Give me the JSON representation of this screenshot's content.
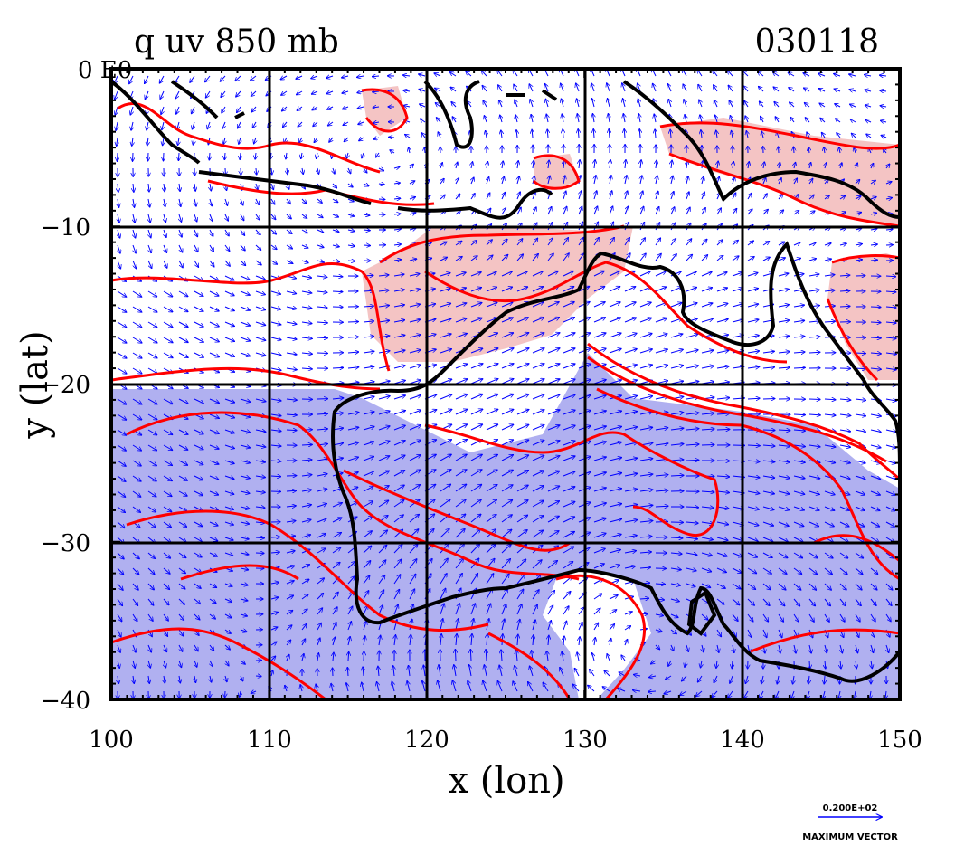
{
  "title_left": "q uv 850 mb",
  "title_right": "030118",
  "x_axis": {
    "label": "x (lon)",
    "ticks": [
      "100",
      "110",
      "120",
      "130",
      "140",
      "150"
    ],
    "values": [
      100,
      110,
      120,
      130,
      140,
      150
    ],
    "range": [
      100,
      150
    ]
  },
  "y_axis": {
    "label": "y (lat)",
    "ticks": [
      "0 E0",
      "−10",
      "−20",
      "−30",
      "−40"
    ],
    "values": [
      0,
      -10,
      -20,
      -30,
      -40
    ],
    "range": [
      -40,
      0
    ]
  },
  "grid": true,
  "legend": {
    "vector_magnitude": "0.200E+02",
    "vector_label": "MAXIMUM VECTOR"
  },
  "colors": {
    "frame": "#000000",
    "contour": "#ff0000",
    "vector": "#0000ff",
    "fill_high": "#f4c4c4",
    "fill_low": "#b0b0f0",
    "coast": "#000000"
  }
}
